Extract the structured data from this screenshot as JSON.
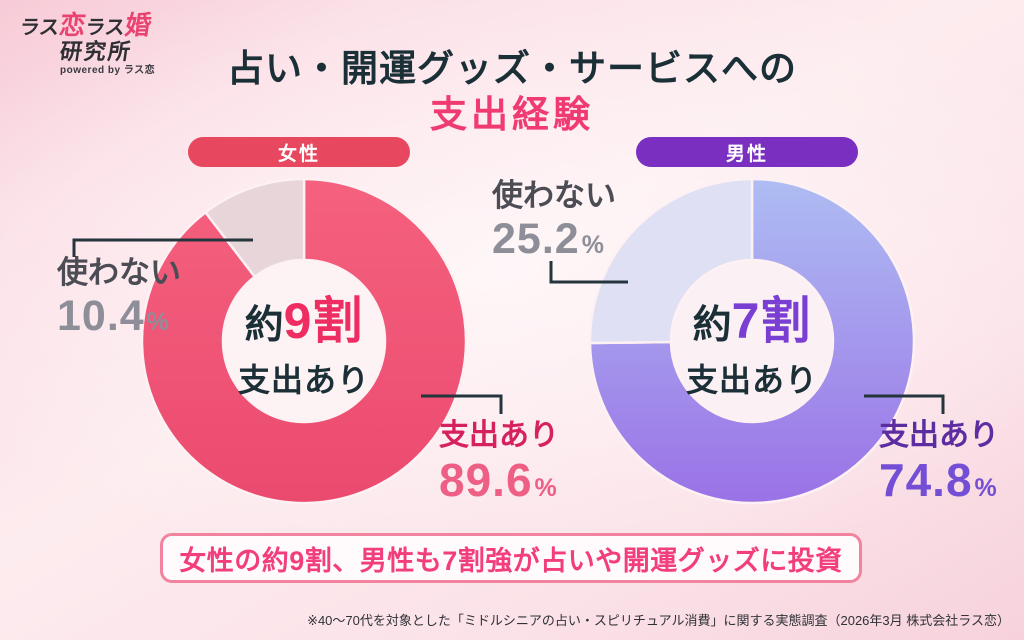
{
  "logo": {
    "parts": [
      {
        "text": "ラス"
      },
      {
        "text": "恋"
      },
      {
        "text": "ラス"
      },
      {
        "text": "婚"
      }
    ],
    "line2": "研究所",
    "tagline": "powered by ラス恋"
  },
  "title": {
    "line1": "占い・開運グッズ・サービスへの",
    "line2": "支出経験"
  },
  "percent_symbol": "%",
  "chart_data": [
    {
      "type": "pie",
      "group_label": "女性",
      "accent": "#e8485f",
      "segments": [
        {
          "label": "支出あり",
          "value": 89.6
        },
        {
          "label": "使わない",
          "value": 10.4
        }
      ],
      "center": {
        "about": "約",
        "ratio": "9割",
        "sub": "支出あり"
      },
      "palette": {
        "main_start": "#f5617e",
        "main_end": "#eb4a6f",
        "rest": "#e7d5da",
        "hole": "#fdf3f5",
        "gap": "#fdf1f4",
        "ratio": "#ee2e63",
        "label_main": "#d6215f",
        "label_main_num": "#ee5f85",
        "label_rest": "#4c4c55",
        "label_rest_num": "#8e8e99"
      }
    },
    {
      "type": "pie",
      "group_label": "男性",
      "accent": "#7b2fc1",
      "segments": [
        {
          "label": "支出あり",
          "value": 74.8
        },
        {
          "label": "使わない",
          "value": 25.2
        }
      ],
      "center": {
        "about": "約",
        "ratio": "7割",
        "sub": "支出あり"
      },
      "palette": {
        "main_start": "#aebdf3",
        "main_end": "#9a72e6",
        "rest": "#dfe0f4",
        "hole": "#fbf1f5",
        "gap": "#fdf1f4",
        "ratio": "#7b3ed2",
        "label_main": "#5b2da0",
        "label_main_num": "#744fd6",
        "label_rest": "#4c4c55",
        "label_rest_num": "#8e8e99"
      }
    }
  ],
  "banner": "女性の約9割、男性も7割強が占いや開運グッズに投資",
  "footnote": "※40〜70代を対象とした「ミドルシニアの占い・スピリチュアル消費」に関する実態調査（2026年3月 株式会社ラス恋）"
}
